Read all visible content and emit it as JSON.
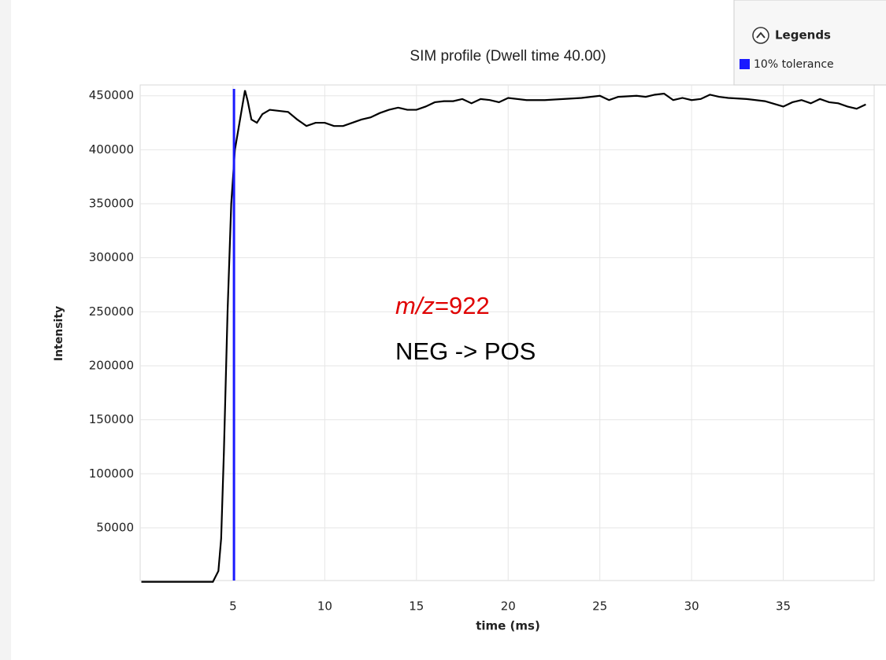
{
  "chart_data": {
    "type": "line",
    "title": "SIM profile (Dwell time 40.00)",
    "x_label": "time (ms)",
    "y_label": "Intensity",
    "x": [
      0,
      3.9,
      4.2,
      4.35,
      4.5,
      4.7,
      4.9,
      5.1,
      5.3,
      5.5,
      5.65,
      5.8,
      6.0,
      6.3,
      6.6,
      7.0,
      7.5,
      8.0,
      8.5,
      9.0,
      9.5,
      10,
      10.5,
      11,
      11.5,
      12,
      12.5,
      13,
      13.5,
      14,
      14.5,
      15,
      15.5,
      16,
      16.5,
      17,
      17.5,
      18,
      18.5,
      19,
      19.5,
      20,
      21,
      22,
      23,
      24,
      25,
      25.5,
      26,
      27,
      27.5,
      28,
      28.5,
      29,
      29.5,
      30,
      30.5,
      31,
      31.5,
      32,
      33,
      34,
      35,
      35.5,
      36,
      36.5,
      37,
      37.5,
      38,
      38.5,
      39,
      39.5
    ],
    "values": [
      0,
      0,
      10000,
      40000,
      120000,
      250000,
      350000,
      400000,
      420000,
      440000,
      455000,
      445000,
      428000,
      425000,
      433000,
      437000,
      436000,
      435000,
      428000,
      422000,
      425000,
      425000,
      422000,
      422000,
      425000,
      428000,
      430000,
      434000,
      437000,
      439000,
      437000,
      437000,
      440000,
      444000,
      445000,
      445000,
      447000,
      443000,
      447000,
      446000,
      444000,
      448000,
      446000,
      446000,
      447000,
      448000,
      450000,
      446000,
      449000,
      450000,
      449000,
      451000,
      452000,
      446000,
      448000,
      446000,
      447000,
      451000,
      449000,
      448000,
      447000,
      445000,
      440000,
      444000,
      446000,
      443000,
      447000,
      444000,
      443000,
      440000,
      438000,
      442000
    ],
    "color": "#000000",
    "tolerance": {
      "name": "10% tolerance",
      "color": "#1a1aff",
      "x": 5.05
    },
    "legend_title": "Legends",
    "xlim": [
      0,
      40
    ],
    "xticks": [
      5,
      10,
      15,
      20,
      25,
      30,
      35
    ],
    "ylim": [
      0,
      460000
    ],
    "yticks": [
      50000,
      100000,
      150000,
      200000,
      250000,
      300000,
      350000,
      400000,
      450000
    ],
    "grid": true,
    "annotation": {
      "italic": "m/z",
      "rest": "=922",
      "line2": "NEG -> POS"
    }
  }
}
